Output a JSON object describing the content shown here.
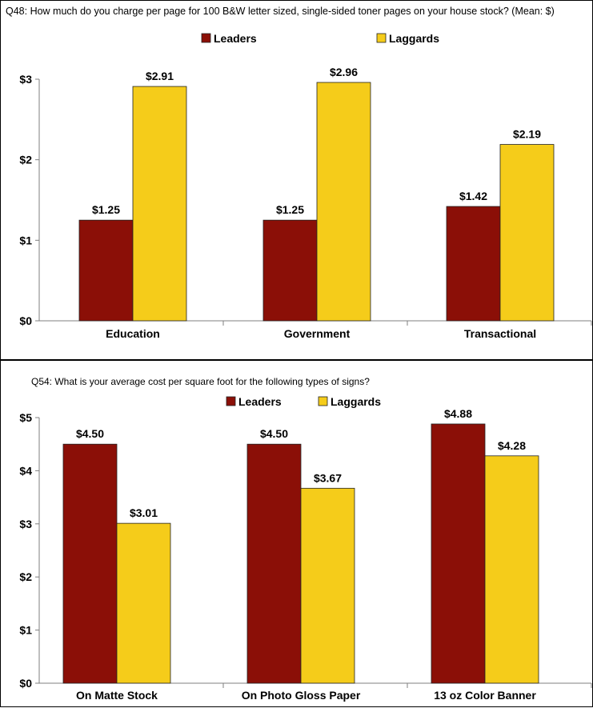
{
  "charts": [
    {
      "question": "Q48: How much do you charge per page for 100 B&W letter sized, single-sided toner pages on your house stock? (Mean: $)"
    },
    {
      "question": "Q54: What is your average cost per square foot for the following types of signs?"
    }
  ],
  "colors": {
    "leaders": "#8b0f07",
    "laggards": "#f5cc1a"
  },
  "chart_data": [
    {
      "type": "bar",
      "title": "Q48: How much do you charge per page for 100 B&W letter sized, single-sided toner pages on your house stock? (Mean: $)",
      "categories": [
        "Education",
        "Government",
        "Transactional"
      ],
      "series": [
        {
          "name": "Leaders",
          "values": [
            1.25,
            1.25,
            1.42
          ],
          "labels": [
            "$1.25",
            "$1.25",
            "$1.42"
          ]
        },
        {
          "name": "Laggards",
          "values": [
            2.91,
            2.96,
            2.19
          ],
          "labels": [
            "$2.91",
            "$2.96",
            "$2.19"
          ]
        }
      ],
      "ylim": [
        0,
        3
      ],
      "yticks": [
        0,
        1,
        2,
        3
      ],
      "ytick_labels": [
        "$0",
        "$1",
        "$2",
        "$3"
      ],
      "legend": "top-center",
      "grid": false
    },
    {
      "type": "bar",
      "title": "Q54: What is your average cost per square foot for the following types of signs?",
      "categories": [
        "On Matte Stock",
        "On Photo Gloss Paper",
        "13 oz Color Banner"
      ],
      "series": [
        {
          "name": "Leaders",
          "values": [
            4.5,
            4.5,
            4.88
          ],
          "labels": [
            "$4.50",
            "$4.50",
            "$4.88"
          ]
        },
        {
          "name": "Laggards",
          "values": [
            3.01,
            3.67,
            4.28
          ],
          "labels": [
            "$3.01",
            "$3.67",
            "$4.28"
          ]
        }
      ],
      "ylim": [
        0,
        5
      ],
      "yticks": [
        0,
        1,
        2,
        3,
        4,
        5
      ],
      "ytick_labels": [
        "$0",
        "$1",
        "$2",
        "$3",
        "$4",
        "$5"
      ],
      "legend": "top-center",
      "grid": false
    }
  ]
}
